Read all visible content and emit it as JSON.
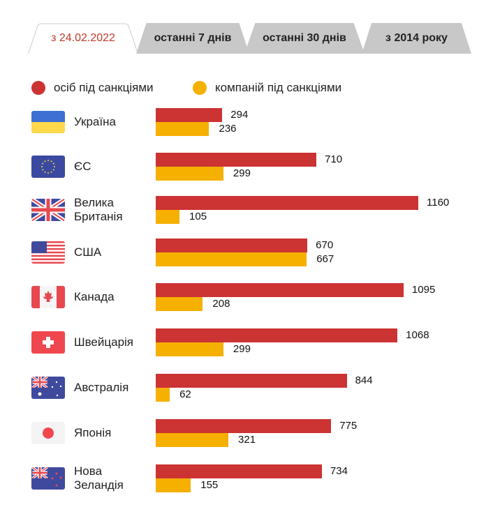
{
  "tabs": [
    {
      "label": "з 24.02.2022",
      "active": true
    },
    {
      "label": "останні 7 днів",
      "active": false
    },
    {
      "label": "останні 30 днів",
      "active": false
    },
    {
      "label": "з 2014 року",
      "active": false
    }
  ],
  "colors": {
    "persons": "#cc3333",
    "companies": "#f5b000",
    "active_tab": "#c0392b"
  },
  "chart_data": {
    "type": "bar",
    "orientation": "horizontal",
    "legend": [
      "осіб під санкціями",
      "компаній під санкціями"
    ],
    "legend_position": "top-left",
    "categories": [
      "Україна",
      "ЄС",
      "Велика Британія",
      "США",
      "Канада",
      "Швейцарія",
      "Австралія",
      "Японія",
      "Нова Зеландія"
    ],
    "category_lines": [
      [
        "Україна"
      ],
      [
        "ЄС"
      ],
      [
        "Велика",
        "Британія"
      ],
      [
        "США"
      ],
      [
        "Канада"
      ],
      [
        "Швейцарія"
      ],
      [
        "Австралія"
      ],
      [
        "Японія"
      ],
      [
        "Нова",
        "Зеландія"
      ]
    ],
    "flags": [
      "ukraine",
      "eu",
      "uk",
      "usa",
      "canada",
      "switzerland",
      "australia",
      "japan",
      "new-zealand"
    ],
    "series": [
      {
        "name": "осіб під санкціями",
        "values": [
          294,
          710,
          1160,
          670,
          1095,
          1068,
          844,
          775,
          734
        ]
      },
      {
        "name": "компаній під санкціями",
        "values": [
          236,
          299,
          105,
          667,
          208,
          299,
          62,
          321,
          155
        ]
      }
    ],
    "xlim": [
      0,
      1160
    ]
  }
}
